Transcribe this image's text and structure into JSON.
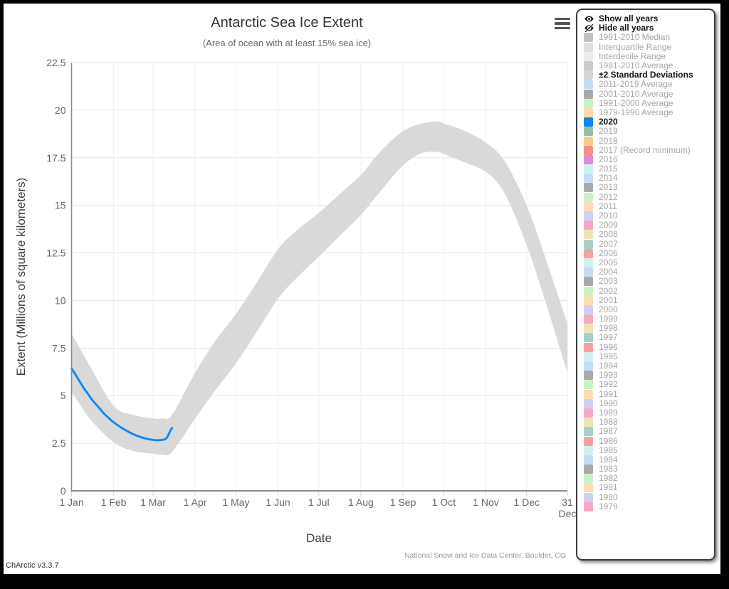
{
  "version_label": "ChArctic v3.3.7",
  "chart_data": {
    "type": "area",
    "title": "Antarctic Sea Ice Extent",
    "subtitle": "(Area of ocean with at least 15% sea ice)",
    "xlabel": "Date",
    "ylabel": "Extent (Millions of square kilometers)",
    "credit": "National Snow and Ice Data Center, Boulder, CO",
    "ylim": [
      0,
      22.5
    ],
    "grid": true,
    "legend_position": "right",
    "colors": {
      "band": "#d9d9d9",
      "line_2020": "#1487f0",
      "axis": "#8a8a8a",
      "grid_line": "#e6e6e6",
      "tick_mark": "#ccd6eb"
    },
    "yticks": [
      {
        "v": 0,
        "label": "0"
      },
      {
        "v": 2.5,
        "label": "2.5"
      },
      {
        "v": 5,
        "label": "5"
      },
      {
        "v": 7.5,
        "label": "7.5"
      },
      {
        "v": 10,
        "label": "10"
      },
      {
        "v": 12.5,
        "label": "12.5"
      },
      {
        "v": 15,
        "label": "15"
      },
      {
        "v": 17.5,
        "label": "17.5"
      },
      {
        "v": 20,
        "label": "20"
      },
      {
        "v": 22.5,
        "label": "22.5"
      }
    ],
    "xticks": [
      {
        "day": 1,
        "label": "1 Jan"
      },
      {
        "day": 32,
        "label": "1 Feb"
      },
      {
        "day": 61,
        "label": "1 Mar"
      },
      {
        "day": 92,
        "label": "1 Apr"
      },
      {
        "day": 122,
        "label": "1 May"
      },
      {
        "day": 153,
        "label": "1 Jun"
      },
      {
        "day": 183,
        "label": "1 Jul"
      },
      {
        "day": 214,
        "label": "1 Aug"
      },
      {
        "day": 245,
        "label": "1 Sep"
      },
      {
        "day": 275,
        "label": "1 Oct"
      },
      {
        "day": 306,
        "label": "1 Nov"
      },
      {
        "day": 336,
        "label": "1 Dec"
      },
      {
        "day": 366,
        "label": "31 Dec",
        "wrap": [
          "31",
          "Dec"
        ]
      }
    ],
    "series": [
      {
        "name": "±2 Standard Deviations",
        "kind": "band",
        "color": "#d9d9d9",
        "points_day_lower_upper": [
          [
            1,
            5.2,
            8.25
          ],
          [
            15,
            3.75,
            6.5
          ],
          [
            32,
            2.55,
            4.45
          ],
          [
            46,
            2.1,
            4.0
          ],
          [
            61,
            1.95,
            3.8
          ],
          [
            68,
            1.9,
            3.8
          ],
          [
            75,
            2.05,
            4.0
          ],
          [
            92,
            3.8,
            6.2
          ],
          [
            106,
            5.2,
            7.8
          ],
          [
            122,
            6.7,
            9.3
          ],
          [
            136,
            8.2,
            10.8
          ],
          [
            153,
            10.1,
            12.7
          ],
          [
            167,
            11.2,
            13.7
          ],
          [
            183,
            12.3,
            14.6
          ],
          [
            197,
            13.3,
            15.5
          ],
          [
            214,
            14.5,
            16.6
          ],
          [
            228,
            15.7,
            17.8
          ],
          [
            245,
            17.1,
            18.9
          ],
          [
            259,
            17.75,
            19.3
          ],
          [
            271,
            17.8,
            19.4
          ],
          [
            275,
            17.7,
            19.3
          ],
          [
            289,
            17.3,
            18.95
          ],
          [
            306,
            16.75,
            18.3
          ],
          [
            320,
            15.6,
            17.3
          ],
          [
            336,
            12.9,
            15.0
          ],
          [
            350,
            9.9,
            12.2
          ],
          [
            366,
            6.2,
            8.8
          ]
        ]
      },
      {
        "name": "2020",
        "kind": "line",
        "color": "#1487f0",
        "points_day_value": [
          [
            1,
            6.42
          ],
          [
            4,
            6.1
          ],
          [
            7,
            5.75
          ],
          [
            10,
            5.4
          ],
          [
            13,
            5.1
          ],
          [
            16,
            4.8
          ],
          [
            19,
            4.55
          ],
          [
            22,
            4.3
          ],
          [
            25,
            4.05
          ],
          [
            28,
            3.85
          ],
          [
            32,
            3.6
          ],
          [
            35,
            3.45
          ],
          [
            38,
            3.3
          ],
          [
            41,
            3.18
          ],
          [
            44,
            3.06
          ],
          [
            47,
            2.96
          ],
          [
            50,
            2.87
          ],
          [
            53,
            2.8
          ],
          [
            56,
            2.74
          ],
          [
            59,
            2.7
          ],
          [
            62,
            2.67
          ],
          [
            65,
            2.66
          ],
          [
            68,
            2.68
          ],
          [
            70,
            2.72
          ],
          [
            71,
            2.78
          ],
          [
            72,
            2.9
          ],
          [
            73,
            3.05
          ],
          [
            74,
            3.2
          ],
          [
            75,
            3.3
          ]
        ]
      }
    ]
  },
  "legend": {
    "controls": [
      {
        "label": "Show all years",
        "icon": "eye"
      },
      {
        "label": "Hide all years",
        "icon": "eye-slash"
      }
    ],
    "entries": [
      {
        "label": "1981-2010 Median",
        "color": "#c2c2c2",
        "active": false
      },
      {
        "label": "Interquartile Range",
        "color": "#dedede",
        "active": false
      },
      {
        "label": "Interdecile Range",
        "color": "#ececec",
        "active": false
      },
      {
        "label": "1981-2010 Average",
        "color": "#cacaca",
        "active": false
      },
      {
        "label": "±2 Standard Deviations",
        "color": "#d6d6d6",
        "active": true
      },
      {
        "label": "2011-2019 Average",
        "color": "#c4ddf6",
        "active": false
      },
      {
        "label": "2001-2010 Average",
        "color": "#a8a8a8",
        "active": false
      },
      {
        "label": "1991-2000 Average",
        "color": "#c9f2c3",
        "active": false
      },
      {
        "label": "1979-1990 Average",
        "color": "#fbdcb4",
        "active": false
      },
      {
        "label": "2020",
        "color": "#0d86f0",
        "active": true
      },
      {
        "label": "2019",
        "color": "#9cbd9c",
        "active": false
      },
      {
        "label": "2018",
        "color": "#fcca8c",
        "active": false
      },
      {
        "label": "2017 (Record minimum)",
        "color": "#f98c86",
        "active": false
      },
      {
        "label": "2016",
        "color": "#da8cd8",
        "active": false
      },
      {
        "label": "2015",
        "color": "#cdf2ee",
        "active": false
      },
      {
        "label": "2014",
        "color": "#c4ddf6",
        "active": false
      },
      {
        "label": "2013",
        "color": "#a9a9a9",
        "active": false
      },
      {
        "label": "2012",
        "color": "#c9f2c3",
        "active": false
      },
      {
        "label": "2011",
        "color": "#fbdcb4",
        "active": false
      },
      {
        "label": "2010",
        "color": "#cfcff5",
        "active": false
      },
      {
        "label": "2009",
        "color": "#f5aac2",
        "active": false
      },
      {
        "label": "2008",
        "color": "#eee4b6",
        "active": false
      },
      {
        "label": "2007",
        "color": "#a9cfc8",
        "active": false
      },
      {
        "label": "2006",
        "color": "#f9a0a0",
        "active": false
      },
      {
        "label": "2005",
        "color": "#cdf2ee",
        "active": false
      },
      {
        "label": "2004",
        "color": "#c4ddf6",
        "active": false
      },
      {
        "label": "2003",
        "color": "#a9a9a9",
        "active": false
      },
      {
        "label": "2002",
        "color": "#c9f2c3",
        "active": false
      },
      {
        "label": "2001",
        "color": "#fbdcb4",
        "active": false
      },
      {
        "label": "2000",
        "color": "#cfcff5",
        "active": false
      },
      {
        "label": "1999",
        "color": "#f5aac2",
        "active": false
      },
      {
        "label": "1998",
        "color": "#eee4b6",
        "active": false
      },
      {
        "label": "1997",
        "color": "#a9cfc8",
        "active": false
      },
      {
        "label": "1996",
        "color": "#f9a0a0",
        "active": false
      },
      {
        "label": "1995",
        "color": "#cdf2ee",
        "active": false
      },
      {
        "label": "1994",
        "color": "#c4ddf6",
        "active": false
      },
      {
        "label": "1993",
        "color": "#a9a9a9",
        "active": false
      },
      {
        "label": "1992",
        "color": "#c9f2c3",
        "active": false
      },
      {
        "label": "1991",
        "color": "#fbdcb4",
        "active": false
      },
      {
        "label": "1990",
        "color": "#cfcff5",
        "active": false
      },
      {
        "label": "1989",
        "color": "#f5aac2",
        "active": false
      },
      {
        "label": "1988",
        "color": "#eee4b6",
        "active": false
      },
      {
        "label": "1987",
        "color": "#a9cfc8",
        "active": false
      },
      {
        "label": "1986",
        "color": "#f9a0a0",
        "active": false
      },
      {
        "label": "1985",
        "color": "#cdf2ee",
        "active": false
      },
      {
        "label": "1984",
        "color": "#c4ddf6",
        "active": false
      },
      {
        "label": "1983",
        "color": "#a9a9a9",
        "active": false
      },
      {
        "label": "1982",
        "color": "#c9f2c3",
        "active": false
      },
      {
        "label": "1981",
        "color": "#fbdcb4",
        "active": false
      },
      {
        "label": "1980",
        "color": "#cfcff5",
        "active": false
      },
      {
        "label": "1979",
        "color": "#f5aac2",
        "active": false
      }
    ]
  }
}
